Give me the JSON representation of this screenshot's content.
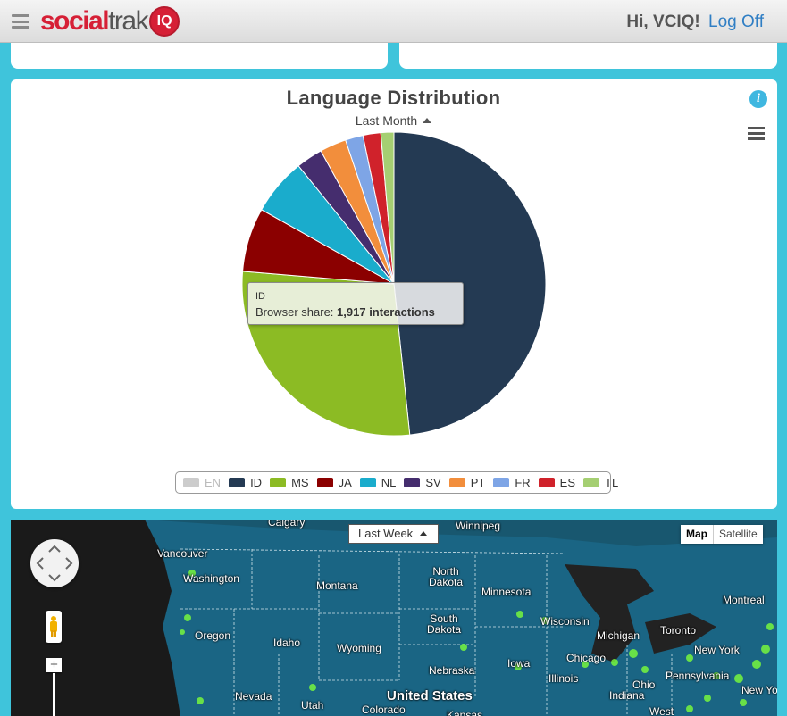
{
  "header": {
    "logo_social": "social",
    "logo_trak": "trak",
    "logo_badge": "IQ",
    "greeting": "Hi, VCIQ!",
    "logout": "Log Off"
  },
  "chart_card": {
    "period": "Last Month",
    "info_icon": "i"
  },
  "chart_data": {
    "type": "pie",
    "title": "Language Distribution",
    "categories": [
      "EN",
      "ID",
      "MS",
      "JA",
      "NL",
      "SV",
      "PT",
      "FR",
      "ES",
      "TL"
    ],
    "values": [
      0,
      1917,
      1110,
      270,
      240,
      112,
      112,
      75,
      75,
      55
    ],
    "colors": [
      "#cccccc",
      "#243a53",
      "#8cbb24",
      "#8b0000",
      "#1aaccc",
      "#452d6e",
      "#f28e3c",
      "#7ea5e6",
      "#d0222b",
      "#a5cf72"
    ],
    "hidden": [
      "EN"
    ],
    "tooltip": {
      "category": "ID",
      "label": "Browser share:",
      "value": "1,917 interactions"
    }
  },
  "map": {
    "period": "Last Week",
    "map_button": "Map",
    "satellite_button": "Satellite",
    "zoom_plus": "+",
    "labels": [
      {
        "text": "Calgary"
      },
      {
        "text": "Winnipeg"
      },
      {
        "text": "Vancouver"
      },
      {
        "text": "Washington"
      },
      {
        "text": "Montana"
      },
      {
        "text": "North Dakota"
      },
      {
        "text": "Minnesota"
      },
      {
        "text": "Montreal"
      },
      {
        "text": "Oregon"
      },
      {
        "text": "Idaho"
      },
      {
        "text": "Wyoming"
      },
      {
        "text": "South Dakota"
      },
      {
        "text": "Wisconsin"
      },
      {
        "text": "Michigan"
      },
      {
        "text": "Toronto"
      },
      {
        "text": "New York"
      },
      {
        "text": "Iowa"
      },
      {
        "text": "Nebraska"
      },
      {
        "text": "Chicago"
      },
      {
        "text": "Illinois"
      },
      {
        "text": "Pennsylvania"
      },
      {
        "text": "Ohio"
      },
      {
        "text": "Indiana"
      },
      {
        "text": "New York"
      },
      {
        "text": "Nevada"
      },
      {
        "text": "Utah"
      },
      {
        "text": "United States"
      },
      {
        "text": "Colorado"
      },
      {
        "text": "Kansas"
      },
      {
        "text": "West"
      }
    ]
  }
}
